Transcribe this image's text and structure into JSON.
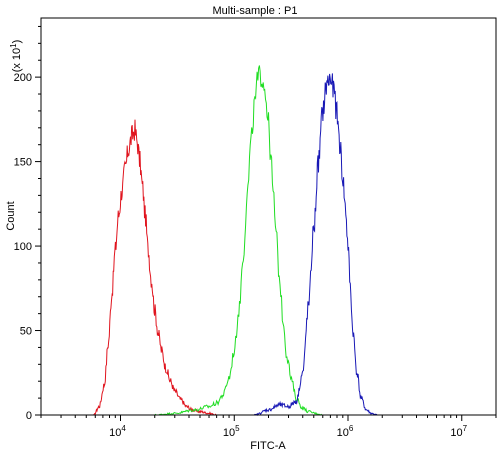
{
  "chart_data": {
    "type": "line",
    "title": "Multi-sample : P1",
    "xlabel": "FITC-A",
    "ylabel": "Count",
    "y_multiplier_label": "(x 10",
    "y_multiplier_exp": "1",
    "x_scale": "log",
    "xlim": [
      2000,
      20000000
    ],
    "ylim": [
      0,
      235
    ],
    "x_ticks": [
      {
        "value": 10000,
        "base": "10",
        "exp": "4"
      },
      {
        "value": 100000,
        "base": "10",
        "exp": "5"
      },
      {
        "value": 1000000,
        "base": "10",
        "exp": "6"
      },
      {
        "value": 10000000,
        "base": "10",
        "exp": "7"
      }
    ],
    "y_ticks": [
      0,
      50,
      100,
      150,
      200
    ],
    "grid": false,
    "legend": "none",
    "series": [
      {
        "color": "#e0141e",
        "x": [
          5800,
          6500,
          7200,
          7800,
          8400,
          9000,
          9600,
          10300,
          11000,
          11800,
          12600,
          13300,
          14000,
          14800,
          15600,
          16500,
          17500,
          18700,
          20000,
          21500,
          23000,
          25000,
          27500,
          30000,
          34000,
          38000,
          43000,
          50000,
          60000,
          70000
        ],
        "y": [
          0,
          5,
          18,
          42,
          72,
          98,
          118,
          133,
          146,
          158,
          165,
          169,
          162,
          150,
          135,
          118,
          98,
          80,
          62,
          48,
          38,
          28,
          20,
          14,
          9,
          5,
          3,
          2,
          1,
          0
        ]
      },
      {
        "color": "#1fdd22",
        "x": [
          20000,
          30000,
          45000,
          60000,
          70000,
          80000,
          90000,
          100000,
          110000,
          120000,
          130000,
          140000,
          150000,
          160000,
          170000,
          180000,
          190000,
          200000,
          210000,
          220000,
          235000,
          250000,
          270000,
          290000,
          320000,
          350000,
          400000,
          450000,
          520000,
          600000
        ],
        "y": [
          0,
          1,
          3,
          5,
          7,
          12,
          22,
          38,
          62,
          95,
          130,
          160,
          182,
          197,
          202,
          199,
          188,
          172,
          152,
          130,
          105,
          80,
          55,
          35,
          20,
          10,
          4,
          2,
          1,
          0
        ]
      },
      {
        "color": "#1818b5",
        "x": [
          150000,
          200000,
          250000,
          300000,
          350000,
          400000,
          450000,
          500000,
          550000,
          600000,
          650000,
          700000,
          750000,
          800000,
          850000,
          900000,
          950000,
          1000000,
          1050000,
          1100000,
          1200000,
          1300000,
          1450000,
          1600000,
          1800000
        ],
        "y": [
          0,
          3,
          6,
          5,
          8,
          25,
          65,
          110,
          150,
          180,
          196,
          199,
          192,
          178,
          160,
          140,
          122,
          100,
          75,
          50,
          25,
          10,
          3,
          1,
          0
        ]
      }
    ]
  }
}
